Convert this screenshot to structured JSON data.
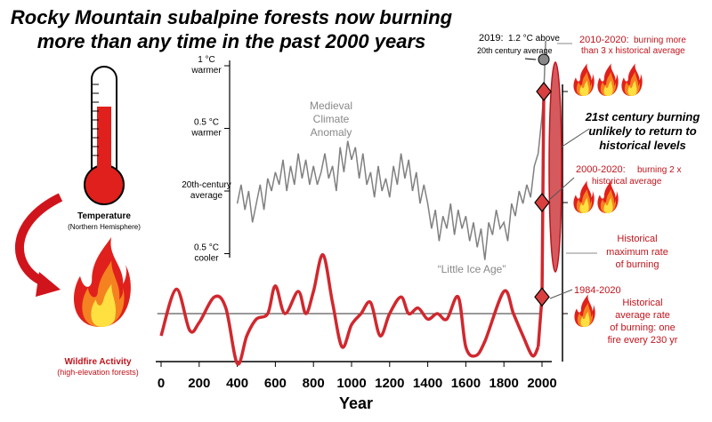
{
  "title": [
    "Rocky Mountain subalpine forests now burning",
    "more than any time in the past 2000 years"
  ],
  "colors": {
    "fire": "#d0282e",
    "temp": "#808080",
    "annot": "#c0141c"
  },
  "left_labels": {
    "temperature": "Temperature",
    "temperature_sub": "(Northern Hemisphere)",
    "wildfire": "Wildfire Activity",
    "wildfire_sub": "(high-elevation forests)"
  },
  "chart_data": {
    "type": "line",
    "xlabel": "Year",
    "xlim": [
      0,
      2100
    ],
    "xticks": [
      0,
      200,
      400,
      600,
      800,
      1000,
      1200,
      1400,
      1600,
      1800,
      2000
    ],
    "temperature": {
      "yticks": [
        {
          "v": 1,
          "l1": "1 °C",
          "l2": "warmer"
        },
        {
          "v": 0.5,
          "l1": "0.5 °C",
          "l2": "warmer"
        },
        {
          "v": 0,
          "l1": "20th-century",
          "l2": "average"
        },
        {
          "v": -0.5,
          "l1": "0.5 °C",
          "l2": "cooler"
        }
      ],
      "x": [
        400,
        420,
        440,
        460,
        480,
        500,
        520,
        540,
        560,
        580,
        600,
        620,
        640,
        660,
        680,
        700,
        720,
        740,
        760,
        780,
        800,
        820,
        840,
        860,
        880,
        900,
        920,
        940,
        960,
        980,
        1000,
        1020,
        1040,
        1060,
        1080,
        1100,
        1120,
        1140,
        1160,
        1180,
        1200,
        1220,
        1240,
        1260,
        1280,
        1300,
        1320,
        1340,
        1360,
        1380,
        1400,
        1420,
        1440,
        1460,
        1480,
        1500,
        1520,
        1540,
        1560,
        1580,
        1600,
        1620,
        1640,
        1660,
        1680,
        1700,
        1720,
        1740,
        1760,
        1780,
        1800,
        1820,
        1840,
        1860,
        1880,
        1900,
        1920,
        1940,
        1960,
        1980,
        2000,
        2010,
        2019
      ],
      "y": [
        -0.1,
        0.05,
        -0.15,
        0.0,
        -0.25,
        -0.1,
        0.05,
        -0.15,
        0.1,
        0.0,
        0.15,
        0.05,
        0.25,
        0.0,
        0.2,
        0.05,
        0.3,
        0.1,
        0.25,
        0.05,
        0.2,
        0.05,
        0.15,
        0.3,
        0.1,
        0.2,
        0.0,
        0.35,
        0.15,
        0.4,
        0.25,
        0.35,
        0.1,
        0.3,
        0.05,
        0.15,
        -0.05,
        0.2,
        0.0,
        0.1,
        -0.05,
        0.2,
        0.05,
        0.3,
        0.1,
        0.25,
        0.0,
        0.15,
        -0.1,
        0.05,
        -0.1,
        -0.3,
        -0.15,
        -0.4,
        -0.2,
        -0.3,
        -0.1,
        -0.35,
        -0.15,
        -0.3,
        -0.2,
        -0.4,
        -0.25,
        -0.45,
        -0.3,
        -0.55,
        -0.25,
        -0.35,
        -0.15,
        -0.3,
        -0.25,
        -0.4,
        -0.1,
        -0.2,
        0.0,
        -0.1,
        0.05,
        -0.05,
        0.2,
        0.3,
        0.6,
        0.8,
        1.2
      ],
      "annotations": [
        {
          "text": "Medieval",
          "text2": "Climate",
          "text3": "Anomaly"
        },
        {
          "text": "“Little Ice Age”"
        }
      ]
    },
    "wildfire": {
      "unit": "x historical average",
      "x": [
        0,
        80,
        150,
        200,
        280,
        340,
        400,
        450,
        500,
        560,
        600,
        650,
        720,
        760,
        800,
        850,
        900,
        950,
        1000,
        1050,
        1100,
        1150,
        1200,
        1260,
        1300,
        1350,
        1400,
        1450,
        1500,
        1560,
        1600,
        1650,
        1700,
        1800,
        1850,
        1900,
        1950,
        1980
      ],
      "y": [
        0.8,
        1.22,
        0.85,
        0.92,
        1.15,
        1.05,
        0.55,
        0.8,
        0.95,
        1.0,
        1.25,
        1.0,
        1.2,
        1.0,
        1.2,
        1.53,
        1.1,
        0.7,
        0.9,
        1.0,
        1.1,
        0.8,
        1.0,
        1.15,
        1.0,
        1.05,
        0.95,
        1.0,
        0.95,
        1.15,
        0.7,
        0.62,
        0.75,
        1.2,
        1.0,
        0.8,
        0.62,
        0.7
      ],
      "historical_average": 1,
      "historical_max": 1.55,
      "recent": [
        {
          "year": 1984,
          "label": "1984-2020",
          "value": 1.15
        },
        {
          "year": 2000,
          "label": "2000-2020:",
          "label2": "burning 2 x",
          "label3": "historical average",
          "value": 2
        },
        {
          "year": 2010,
          "label": "2010-2020:",
          "label2": "burning more",
          "label3": "than 3 x historical average",
          "value": 3
        }
      ]
    },
    "annotations": {
      "t2019": "2019:",
      "t2019b": "1.2 °C above",
      "t2019c": "20th century average",
      "future1": "21st century burning",
      "future2": "unlikely to return to",
      "future3": "historical levels",
      "max1": "Historical",
      "max2": "maximum rate",
      "max3": "of burning",
      "avg1": "Historical",
      "avg2": "average rate",
      "avg3": "of burning: one",
      "avg4": "fire every 230 yr"
    }
  }
}
